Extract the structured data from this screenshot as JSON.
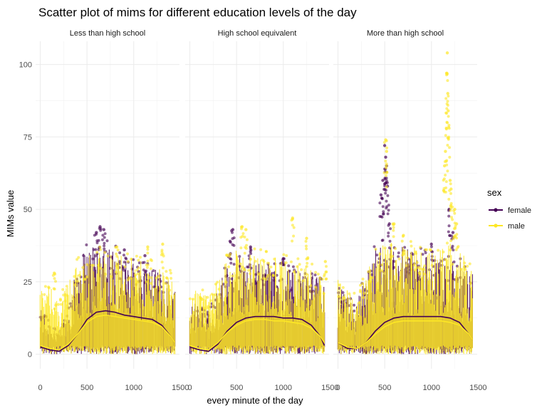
{
  "chart_data": {
    "type": "scatter",
    "title": "Scatter plot of mims for different education levels of the day",
    "xlabel": "every minute of the day",
    "ylabel": "MIMs value",
    "xlim": [
      -50,
      1490
    ],
    "ylim": [
      -5,
      108
    ],
    "x_ticks": [
      0,
      500,
      1000,
      1500
    ],
    "x_tick_labels": [
      "0",
      "500",
      "1000",
      "1500"
    ],
    "y_ticks": [
      0,
      25,
      50,
      75,
      100
    ],
    "y_tick_labels": [
      "0",
      "25",
      "50",
      "75",
      "100"
    ],
    "grid": true,
    "legend": {
      "title": "sex",
      "position": "right",
      "entries": [
        {
          "label": "female",
          "color": "#440154"
        },
        {
          "label": "male",
          "color": "#FDE725"
        }
      ]
    },
    "facets": [
      {
        "label": "Less than high school",
        "series": [
          {
            "name": "female",
            "color": "#440154",
            "upper_envelope": [
              [
                0,
                17
              ],
              [
                100,
                12
              ],
              [
                200,
                8
              ],
              [
                300,
                16
              ],
              [
                400,
                32
              ],
              [
                500,
                38
              ],
              [
                600,
                40
              ],
              [
                700,
                42
              ],
              [
                800,
                36
              ],
              [
                900,
                33
              ],
              [
                1000,
                32
              ],
              [
                1100,
                31
              ],
              [
                1200,
                30
              ],
              [
                1300,
                28
              ],
              [
                1400,
                26
              ],
              [
                1440,
                24
              ]
            ],
            "peaks": [
              [
                640,
                44
              ],
              [
                680,
                43
              ],
              [
                600,
                42
              ],
              [
                900,
                36
              ],
              [
                1120,
                34
              ]
            ],
            "smooth": [
              [
                0,
                2.5
              ],
              [
                100,
                1.5
              ],
              [
                200,
                1
              ],
              [
                300,
                3
              ],
              [
                400,
                7
              ],
              [
                500,
                12
              ],
              [
                600,
                14.5
              ],
              [
                700,
                15
              ],
              [
                800,
                14.5
              ],
              [
                900,
                13.5
              ],
              [
                1000,
                13
              ],
              [
                1100,
                12.5
              ],
              [
                1200,
                12
              ],
              [
                1300,
                10
              ],
              [
                1400,
                6
              ],
              [
                1440,
                4
              ]
            ]
          },
          {
            "name": "male",
            "color": "#FDE725",
            "upper_envelope": [
              [
                0,
                22
              ],
              [
                100,
                24
              ],
              [
                200,
                18
              ],
              [
                300,
                26
              ],
              [
                400,
                32
              ],
              [
                500,
                35
              ],
              [
                600,
                36
              ],
              [
                700,
                35
              ],
              [
                800,
                36
              ],
              [
                900,
                34
              ],
              [
                1000,
                33
              ],
              [
                1100,
                32
              ],
              [
                1200,
                31
              ],
              [
                1300,
                30
              ],
              [
                1400,
                28
              ],
              [
                1440,
                25
              ]
            ],
            "peaks": [
              [
                150,
                28
              ],
              [
                820,
                37
              ],
              [
                1150,
                37
              ],
              [
                1310,
                38
              ]
            ],
            "smooth": [
              [
                0,
                3
              ],
              [
                100,
                2
              ],
              [
                200,
                1.5
              ],
              [
                300,
                3.5
              ],
              [
                400,
                7
              ],
              [
                500,
                11
              ],
              [
                600,
                13
              ],
              [
                700,
                13.5
              ],
              [
                800,
                13
              ],
              [
                900,
                12.5
              ],
              [
                1000,
                12
              ],
              [
                1100,
                11.5
              ],
              [
                1200,
                11
              ],
              [
                1300,
                9.5
              ],
              [
                1400,
                6
              ],
              [
                1440,
                4
              ]
            ]
          }
        ]
      },
      {
        "label": "High school equivalent",
        "series": [
          {
            "name": "female",
            "color": "#440154",
            "upper_envelope": [
              [
                0,
                20
              ],
              [
                100,
                17
              ],
              [
                200,
                14
              ],
              [
                300,
                22
              ],
              [
                400,
                32
              ],
              [
                500,
                34
              ],
              [
                600,
                33
              ],
              [
                700,
                32
              ],
              [
                800,
                31
              ],
              [
                900,
                31
              ],
              [
                1000,
                30
              ],
              [
                1100,
                29
              ],
              [
                1200,
                28
              ],
              [
                1300,
                28
              ],
              [
                1400,
                26
              ],
              [
                1440,
                24
              ]
            ],
            "peaks": [
              [
                460,
                43
              ],
              [
                430,
                39
              ],
              [
                650,
                37
              ],
              [
                1000,
                33
              ]
            ],
            "smooth": [
              [
                0,
                2.5
              ],
              [
                100,
                1.5
              ],
              [
                200,
                1
              ],
              [
                300,
                3.5
              ],
              [
                400,
                8
              ],
              [
                500,
                11
              ],
              [
                600,
                12.5
              ],
              [
                700,
                13
              ],
              [
                800,
                13
              ],
              [
                900,
                13
              ],
              [
                1000,
                12.5
              ],
              [
                1100,
                12.5
              ],
              [
                1200,
                12
              ],
              [
                1300,
                10
              ],
              [
                1400,
                6
              ],
              [
                1440,
                3
              ]
            ]
          },
          {
            "name": "male",
            "color": "#FDE725",
            "upper_envelope": [
              [
                0,
                23
              ],
              [
                100,
                22
              ],
              [
                200,
                20
              ],
              [
                300,
                26
              ],
              [
                400,
                34
              ],
              [
                500,
                36
              ],
              [
                600,
                36
              ],
              [
                700,
                35
              ],
              [
                800,
                34
              ],
              [
                900,
                34
              ],
              [
                1000,
                33
              ],
              [
                1100,
                32
              ],
              [
                1200,
                31
              ],
              [
                1300,
                30
              ],
              [
                1400,
                29
              ],
              [
                1440,
                27
              ]
            ],
            "peaks": [
              [
                560,
                44
              ],
              [
                600,
                43
              ],
              [
                1100,
                47
              ],
              [
                1250,
                40
              ],
              [
                1450,
                32
              ]
            ],
            "smooth": [
              [
                0,
                3
              ],
              [
                100,
                2
              ],
              [
                200,
                1.5
              ],
              [
                300,
                4
              ],
              [
                400,
                7.5
              ],
              [
                500,
                10
              ],
              [
                600,
                11.5
              ],
              [
                700,
                12
              ],
              [
                800,
                12
              ],
              [
                900,
                11.5
              ],
              [
                1000,
                11.5
              ],
              [
                1100,
                11
              ],
              [
                1200,
                10.5
              ],
              [
                1300,
                9
              ],
              [
                1400,
                6
              ],
              [
                1440,
                4
              ]
            ]
          }
        ]
      },
      {
        "label": "More than high school",
        "series": [
          {
            "name": "female",
            "color": "#440154",
            "upper_envelope": [
              [
                0,
                24
              ],
              [
                100,
                20
              ],
              [
                200,
                18
              ],
              [
                300,
                28
              ],
              [
                400,
                38
              ],
              [
                500,
                38
              ],
              [
                600,
                38
              ],
              [
                700,
                37
              ],
              [
                800,
                36
              ],
              [
                900,
                35
              ],
              [
                1000,
                34
              ],
              [
                1100,
                33
              ],
              [
                1200,
                32
              ],
              [
                1300,
                32
              ],
              [
                1400,
                30
              ],
              [
                1440,
                28
              ]
            ],
            "peaks": [
              [
                500,
                72
              ],
              [
                510,
                68
              ],
              [
                520,
                65
              ],
              [
                480,
                60
              ],
              [
                460,
                55
              ],
              [
                530,
                58
              ],
              [
                550,
                45
              ],
              [
                1190,
                50
              ],
              [
                1230,
                42
              ],
              [
                1000,
                38
              ]
            ],
            "smooth": [
              [
                0,
                4
              ],
              [
                100,
                2
              ],
              [
                200,
                2
              ],
              [
                300,
                4
              ],
              [
                400,
                8
              ],
              [
                500,
                11
              ],
              [
                600,
                12.5
              ],
              [
                700,
                13
              ],
              [
                800,
                13
              ],
              [
                900,
                13
              ],
              [
                1000,
                13
              ],
              [
                1100,
                13
              ],
              [
                1200,
                12.5
              ],
              [
                1300,
                11
              ],
              [
                1400,
                7
              ],
              [
                1440,
                5
              ]
            ]
          },
          {
            "name": "male",
            "color": "#FDE725",
            "upper_envelope": [
              [
                0,
                26
              ],
              [
                100,
                22
              ],
              [
                200,
                20
              ],
              [
                300,
                28
              ],
              [
                400,
                36
              ],
              [
                500,
                38
              ],
              [
                600,
                40
              ],
              [
                700,
                38
              ],
              [
                800,
                37
              ],
              [
                900,
                36
              ],
              [
                1000,
                35
              ],
              [
                1100,
                36
              ],
              [
                1200,
                40
              ],
              [
                1300,
                36
              ],
              [
                1400,
                32
              ],
              [
                1440,
                30
              ]
            ],
            "peaks": [
              [
                1170,
                104
              ],
              [
                1165,
                97
              ],
              [
                1175,
                90
              ],
              [
                1180,
                84
              ],
              [
                1160,
                78
              ],
              [
                1150,
                70
              ],
              [
                1140,
                65
              ],
              [
                1200,
                60
              ],
              [
                1210,
                57
              ],
              [
                510,
                74
              ],
              [
                520,
                70
              ],
              [
                1250,
                50
              ],
              [
                1270,
                45
              ],
              [
                600,
                45
              ],
              [
                700,
                41
              ]
            ],
            "smooth": [
              [
                0,
                4
              ],
              [
                100,
                2.5
              ],
              [
                200,
                2
              ],
              [
                300,
                4
              ],
              [
                400,
                7
              ],
              [
                500,
                9.5
              ],
              [
                600,
                11
              ],
              [
                700,
                11.5
              ],
              [
                800,
                11.5
              ],
              [
                900,
                11.5
              ],
              [
                1000,
                11.5
              ],
              [
                1100,
                11.5
              ],
              [
                1200,
                11
              ],
              [
                1300,
                10
              ],
              [
                1400,
                7
              ],
              [
                1440,
                5
              ]
            ]
          }
        ]
      }
    ]
  }
}
